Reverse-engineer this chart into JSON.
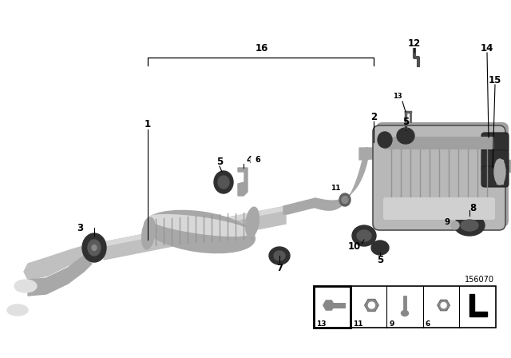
{
  "bg_color": "#ffffff",
  "part_id": "156070",
  "label_font_size": 8.5,
  "label_font_weight": "bold",
  "colors": {
    "pipe_light": "#c0c0c0",
    "pipe_mid": "#a8a8a8",
    "pipe_dark": "#888888",
    "pipe_highlight": "#d8d8d8",
    "rubber_dark": "#303030",
    "rubber_mid": "#484848",
    "muffler_light": "#b8b8b8",
    "muffler_highlight": "#d0d0d0",
    "white_pipe": "#e8e8e8",
    "edge_dark": "#505050"
  }
}
